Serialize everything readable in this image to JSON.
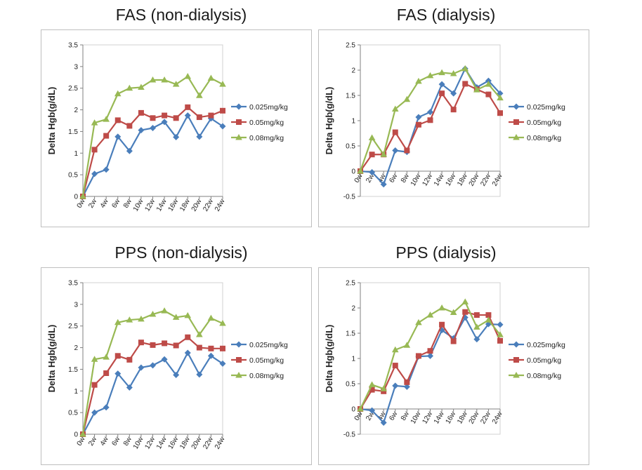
{
  "colors": {
    "s025": "#4a7ebb",
    "s05": "#be4b48",
    "s08": "#98b954"
  },
  "chart_data": [
    {
      "type": "line",
      "title": "FAS (non-dialysis)",
      "ylabel": "Delta Hgb(g/dL)",
      "ylim": [
        0,
        3.5
      ],
      "yticks": [
        0,
        0.5,
        1,
        1.5,
        2,
        2.5,
        3,
        3.5
      ],
      "ytick_labels": [
        "0",
        "0.5",
        "1",
        "1.5",
        "2",
        "2.5",
        "3",
        "3.5"
      ],
      "categories": [
        "0w",
        "2w",
        "4w",
        "6w",
        "8w",
        "10w",
        "12w",
        "14w",
        "16w",
        "18w",
        "20w",
        "22w",
        "24w"
      ],
      "legend": "right",
      "series": [
        {
          "name": "0.025mg/kg",
          "marker": "diamond",
          "values": [
            0,
            0.52,
            0.62,
            1.38,
            1.05,
            1.53,
            1.58,
            1.72,
            1.37,
            1.87,
            1.38,
            1.8,
            1.62
          ]
        },
        {
          "name": "0.05mg/kg",
          "marker": "square",
          "values": [
            0,
            1.08,
            1.4,
            1.76,
            1.63,
            1.93,
            1.81,
            1.87,
            1.81,
            2.06,
            1.83,
            1.87,
            1.98
          ]
        },
        {
          "name": "0.08mg/kg",
          "marker": "triangle",
          "values": [
            0,
            1.7,
            1.78,
            2.37,
            2.5,
            2.52,
            2.69,
            2.69,
            2.59,
            2.77,
            2.33,
            2.73,
            2.59
          ]
        }
      ]
    },
    {
      "type": "line",
      "title": "FAS (dialysis)",
      "ylabel": "Delta Hgb(g/dL)",
      "ylim": [
        -0.5,
        2.5
      ],
      "yticks": [
        -0.5,
        0,
        0.5,
        1,
        1.5,
        2,
        2.5
      ],
      "ytick_labels": [
        "-0.5",
        "0",
        "0.5",
        "1",
        "1.5",
        "2",
        "2.5"
      ],
      "categories": [
        "0w",
        "2w",
        "4w",
        "6w",
        "8w",
        "10w",
        "12w",
        "14w",
        "16w",
        "18w",
        "20w",
        "22w",
        "24w"
      ],
      "legend": "right",
      "series": [
        {
          "name": "0.025mg/kg",
          "marker": "diamond",
          "values": [
            0,
            -0.02,
            -0.26,
            0.41,
            0.38,
            1.07,
            1.17,
            1.72,
            1.54,
            2.03,
            1.66,
            1.79,
            1.54
          ]
        },
        {
          "name": "0.05mg/kg",
          "marker": "square",
          "values": [
            0,
            0.33,
            0.33,
            0.77,
            0.41,
            0.92,
            1.01,
            1.54,
            1.22,
            1.73,
            1.62,
            1.52,
            1.15
          ]
        },
        {
          "name": "0.08mg/kg",
          "marker": "triangle",
          "values": [
            0,
            0.66,
            0.33,
            1.23,
            1.42,
            1.78,
            1.89,
            1.95,
            1.93,
            2.03,
            1.61,
            1.72,
            1.45
          ]
        }
      ]
    },
    {
      "type": "line",
      "title": "PPS (non-dialysis)",
      "ylabel": "Delta Hgb(g/dL)",
      "ylim": [
        0,
        3.5
      ],
      "yticks": [
        0,
        0.5,
        1,
        1.5,
        2,
        2.5,
        3,
        3.5
      ],
      "ytick_labels": [
        "0",
        "0.5",
        "1",
        "1.5",
        "2",
        "2.5",
        "3",
        "3.5"
      ],
      "categories": [
        "0w",
        "2w",
        "4w",
        "6w",
        "8w",
        "10w",
        "12w",
        "14w",
        "16w",
        "18w",
        "20w",
        "22w",
        "24w"
      ],
      "legend": "right",
      "series": [
        {
          "name": "0.025mg/kg",
          "marker": "diamond",
          "values": [
            0,
            0.5,
            0.62,
            1.4,
            1.08,
            1.54,
            1.59,
            1.73,
            1.37,
            1.88,
            1.38,
            1.81,
            1.63
          ]
        },
        {
          "name": "0.05mg/kg",
          "marker": "square",
          "values": [
            0,
            1.14,
            1.41,
            1.81,
            1.72,
            2.12,
            2.06,
            2.1,
            2.05,
            2.24,
            2.0,
            1.98,
            1.98
          ]
        },
        {
          "name": "0.08mg/kg",
          "marker": "triangle",
          "values": [
            0,
            1.73,
            1.78,
            2.58,
            2.64,
            2.66,
            2.77,
            2.85,
            2.7,
            2.74,
            2.3,
            2.68,
            2.56
          ]
        }
      ]
    },
    {
      "type": "line",
      "title": "PPS (dialysis)",
      "ylabel": "Delta Hgb(g/dL)",
      "ylim": [
        -0.5,
        2.5
      ],
      "yticks": [
        -0.5,
        0,
        0.5,
        1,
        1.5,
        2,
        2.5
      ],
      "ytick_labels": [
        "-0.5",
        "0",
        "0.5",
        "1",
        "1.5",
        "2",
        "2.5"
      ],
      "categories": [
        "0w",
        "2w",
        "4w",
        "6w",
        "8w",
        "10w",
        "12w",
        "14w",
        "16w",
        "18w",
        "20w",
        "22w",
        "24w"
      ],
      "legend": "right",
      "series": [
        {
          "name": "0.025mg/kg",
          "marker": "diamond",
          "values": [
            0,
            -0.03,
            -0.27,
            0.46,
            0.44,
            1.04,
            1.05,
            1.56,
            1.4,
            1.81,
            1.38,
            1.68,
            1.67
          ]
        },
        {
          "name": "0.05mg/kg",
          "marker": "square",
          "values": [
            0,
            0.38,
            0.35,
            0.86,
            0.53,
            1.05,
            1.15,
            1.67,
            1.34,
            1.92,
            1.86,
            1.86,
            1.35
          ]
        },
        {
          "name": "0.08mg/kg",
          "marker": "triangle",
          "values": [
            0,
            0.48,
            0.4,
            1.17,
            1.26,
            1.71,
            1.86,
            2.0,
            1.91,
            2.12,
            1.62,
            1.76,
            1.47
          ]
        }
      ]
    }
  ]
}
